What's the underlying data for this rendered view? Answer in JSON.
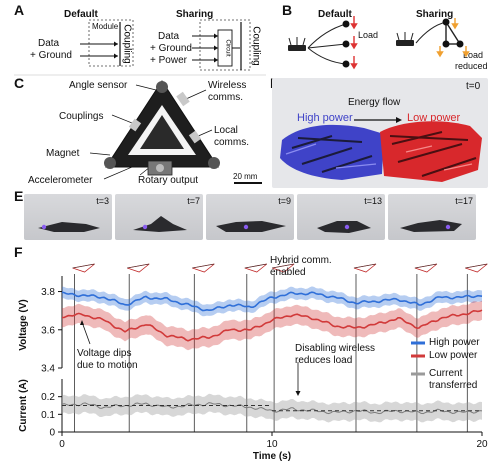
{
  "panels": {
    "A": {
      "letter": "A",
      "default_title": "Default",
      "sharing_title": "Sharing",
      "module_label": "Module",
      "default_inputs": [
        "Data",
        "+ Ground"
      ],
      "sharing_inputs": [
        "Data",
        "+ Ground",
        "+ Power"
      ],
      "coupling_label": "Coupling",
      "circuit_label": "Circuit"
    },
    "B": {
      "letter": "B",
      "default_title": "Default",
      "sharing_title": "Sharing",
      "load_label": "Load",
      "load_reduced_label": "Load\nreduced",
      "load_reduced_line1": "Load",
      "load_reduced_line2": "reduced"
    },
    "C": {
      "letter": "C",
      "labels": {
        "angle_sensor": "Angle sensor",
        "wireless": "Wireless",
        "comms": "comms.",
        "couplings": "Couplings",
        "local": "Local",
        "local_comms": "comms.",
        "magnet": "Magnet",
        "accelerometer": "Accelerometer",
        "rotary_output": "Rotary output",
        "scale": "20 mm"
      }
    },
    "D": {
      "letter": "D",
      "time": "t=0",
      "energy_flow": "Energy flow",
      "high_power": "High power",
      "low_power": "Low power",
      "colors": {
        "high": "#4b4bd6",
        "low": "#e03a3a"
      }
    },
    "E": {
      "letter": "E",
      "frames": [
        "t=3",
        "t=7",
        "t=9",
        "t=13",
        "t=17"
      ]
    },
    "F": {
      "letter": "F",
      "annotations": {
        "hybrid": "Hybrid comm.",
        "hybrid2": "enabled",
        "dips": "Voltage dips",
        "dips2": "due to motion",
        "disabling": "Disabling wireless",
        "disabling2": "reduces load"
      },
      "legend": {
        "high": "High power",
        "low": "Low power",
        "current": "Current",
        "current2": "transferred"
      },
      "colors": {
        "high": "#2f6fd8",
        "low": "#d13a3a",
        "current": "#9a9a9a"
      }
    }
  },
  "chart_data": [
    {
      "type": "line",
      "title": "",
      "xlabel": "",
      "ylabel": "Voltage (V)",
      "ylim": [
        3.4,
        3.85
      ],
      "yticks": [
        "3.8",
        "3.6",
        "3.4"
      ],
      "grid": false,
      "x": [
        0,
        1,
        2,
        3,
        4,
        5,
        6,
        7,
        8,
        9,
        10,
        11,
        12,
        13,
        14,
        15,
        16,
        17,
        18,
        19,
        20
      ],
      "series": [
        {
          "name": "High power",
          "values": [
            3.79,
            3.78,
            3.77,
            3.73,
            3.77,
            3.76,
            3.73,
            3.7,
            3.73,
            3.72,
            3.77,
            3.79,
            3.79,
            3.77,
            3.74,
            3.75,
            3.76,
            3.73,
            3.77,
            3.77,
            3.78
          ],
          "band": 0.03
        },
        {
          "name": "Low power",
          "values": [
            3.67,
            3.68,
            3.65,
            3.59,
            3.63,
            3.57,
            3.55,
            3.56,
            3.6,
            3.6,
            3.65,
            3.68,
            3.66,
            3.62,
            3.61,
            3.63,
            3.66,
            3.61,
            3.66,
            3.68,
            3.7
          ],
          "band": 0.05
        }
      ],
      "vertical_markers": [
        0.6,
        3.2,
        6.3,
        8.8,
        10.1,
        14.0,
        16.9,
        19.3
      ]
    },
    {
      "type": "line",
      "title": "",
      "xlabel": "Time (s)",
      "ylabel": "Current (A)",
      "ylim": [
        0.0,
        0.3
      ],
      "yticks": [
        "0.2",
        "0.1",
        "0"
      ],
      "xticks": [
        "0",
        "10",
        "20"
      ],
      "grid": false,
      "x": [
        0,
        1,
        2,
        3,
        4,
        5,
        6,
        7,
        8,
        9,
        10,
        11,
        12,
        13,
        14,
        15,
        16,
        17,
        18,
        19,
        20
      ],
      "series": [
        {
          "name": "Current transferred",
          "values": [
            0.15,
            0.16,
            0.14,
            0.15,
            0.16,
            0.14,
            0.15,
            0.16,
            0.15,
            0.14,
            0.12,
            0.13,
            0.12,
            0.11,
            0.12,
            0.11,
            0.12,
            0.11,
            0.12,
            0.11,
            0.12
          ],
          "band": 0.05
        }
      ],
      "mean_lines": [
        {
          "x0": 0,
          "x1": 10,
          "value": 0.15
        },
        {
          "x0": 10,
          "x1": 20,
          "value": 0.12
        }
      ]
    }
  ]
}
